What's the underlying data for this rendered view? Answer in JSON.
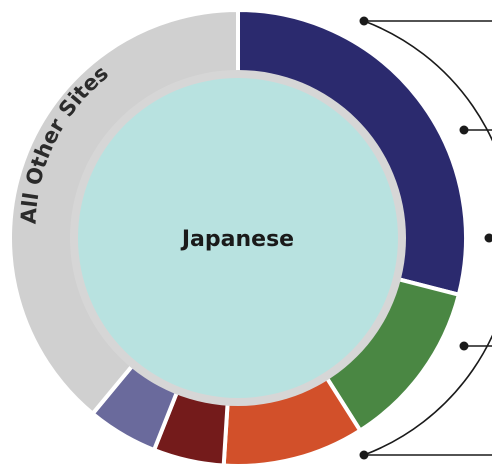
{
  "chart_data": {
    "type": "pie",
    "center_label": "Japanese",
    "slices": [
      {
        "label": "",
        "value": 29,
        "color": "#2b2a6e"
      },
      {
        "label": "",
        "value": 12,
        "color": "#4a8743"
      },
      {
        "label": "",
        "value": 10,
        "color": "#d2502a"
      },
      {
        "label": "",
        "value": 5,
        "color": "#741b1b"
      },
      {
        "label": "",
        "value": 5,
        "color": "#6a6a9c"
      },
      {
        "label": "All Other Sites",
        "value": 39,
        "color": "#d0d0d0"
      }
    ]
  },
  "colors": {
    "inner_disc": "#b8e2e0",
    "inner_ring": "#d6d6d6",
    "callout_lines": "#1a1a1a"
  }
}
